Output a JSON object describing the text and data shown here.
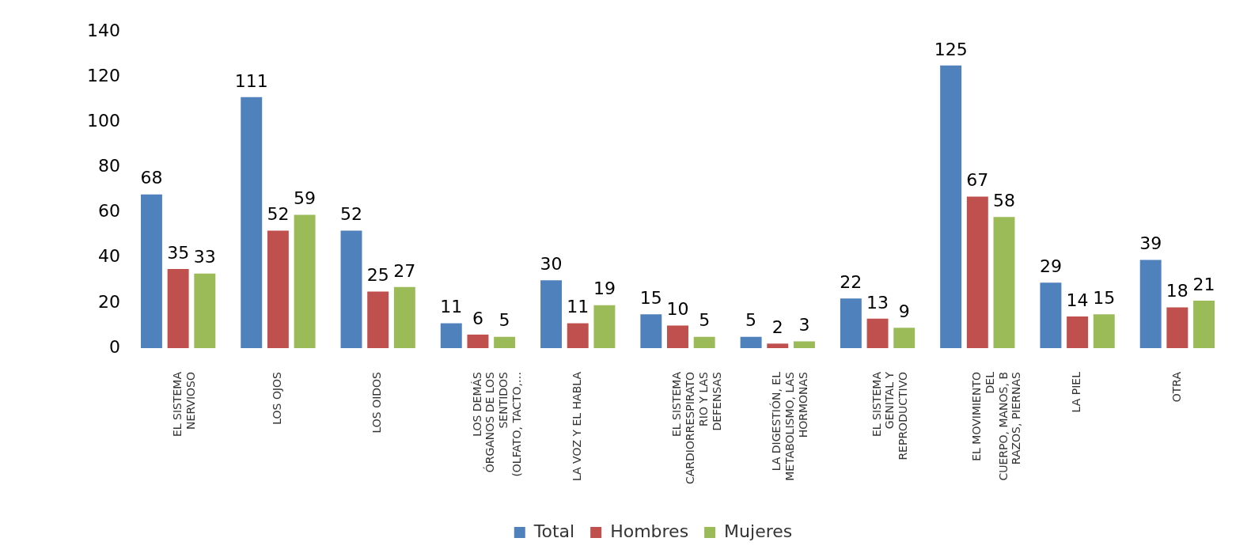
{
  "chart_data": {
    "type": "bar",
    "categories": [
      "EL SISTEMA\nNERVIOSO",
      "LOS OJOS",
      "LOS OIDOS",
      "LOS DEMÁS\nÓRGANOS DE LOS\nSENTIDOS\n(OLFATO, TACTO,…",
      "LA VOZ Y EL HABLA",
      "EL SISTEMA\nCARDIORRESPIRATO\nRIO Y LAS\nDEFENSAS",
      "LA DIGESTIÓN, EL\nMETABOLISMO, LAS\nHORMONAS",
      "EL SISTEMA\nGENITAL Y\nREPRODUCTIVO",
      "EL MOVIMIENTO\nDEL\nCUERPO, MANOS, B\nRAZOS, PIERNAS",
      "LA PIEL",
      "OTRA"
    ],
    "series": [
      {
        "name": "Total",
        "color": "#4f81bd",
        "values": [
          68,
          111,
          52,
          11,
          30,
          15,
          5,
          22,
          125,
          29,
          39
        ]
      },
      {
        "name": "Hombres",
        "color": "#c0504d",
        "values": [
          35,
          52,
          25,
          6,
          11,
          10,
          2,
          13,
          67,
          14,
          18
        ]
      },
      {
        "name": "Mujeres",
        "color": "#9bbb59",
        "values": [
          33,
          59,
          27,
          5,
          19,
          5,
          3,
          9,
          58,
          15,
          21
        ]
      }
    ],
    "ylim": [
      0,
      140
    ],
    "yticks": [
      0,
      20,
      40,
      60,
      80,
      100,
      120,
      140
    ],
    "data_labels": true,
    "grid": false,
    "legend": "bottom"
  }
}
